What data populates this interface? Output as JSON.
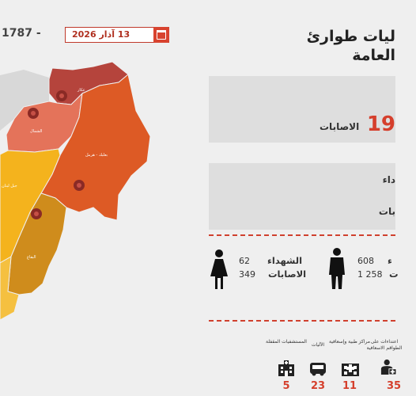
{
  "header": {
    "hotline": "1787 -",
    "date": "13 آذار 2026",
    "title_line1": "ليات طوارئ",
    "title_line2": "العامة"
  },
  "map": {
    "regions": [
      {
        "name": "عكار",
        "color": "#b5443c"
      },
      {
        "name": "الشمال",
        "color": "#e4735a"
      },
      {
        "name": "بعلبك - هرمل",
        "color": "#dd5a25"
      },
      {
        "name": "جبل لبنان",
        "color": "#f4b31d"
      },
      {
        "name": "البقاع",
        "color": "#cf8c1c"
      }
    ]
  },
  "panel1": {
    "value": "19",
    "label": "الاصابات"
  },
  "panel2": {
    "label_a": "داء",
    "label_b": "بات"
  },
  "people": {
    "female": {
      "martyrs": "62",
      "injuries": "349",
      "martyrs_label": "الشهداء",
      "injuries_label": "الاصابات"
    },
    "male": {
      "martyrs": "608",
      "injuries": "1 258",
      "martyrs_label": "ء",
      "injuries_label": "ت"
    }
  },
  "categories": [
    {
      "label": "المستشفيات المقفلة",
      "value": "5",
      "icon": "hospital-icon"
    },
    {
      "label": "الآليات",
      "value": "23",
      "icon": "ambulance-icon"
    },
    {
      "label": "مراكز طبية وإسعافية",
      "value": "11",
      "icon": "medical-center-icon"
    },
    {
      "label": "اعتداءات على الطواقم الاسعافية",
      "value": "35",
      "icon": "paramedic-icon"
    }
  ],
  "colors": {
    "accent": "#d53f2c",
    "panel": "#dedede",
    "background": "#efefef"
  }
}
